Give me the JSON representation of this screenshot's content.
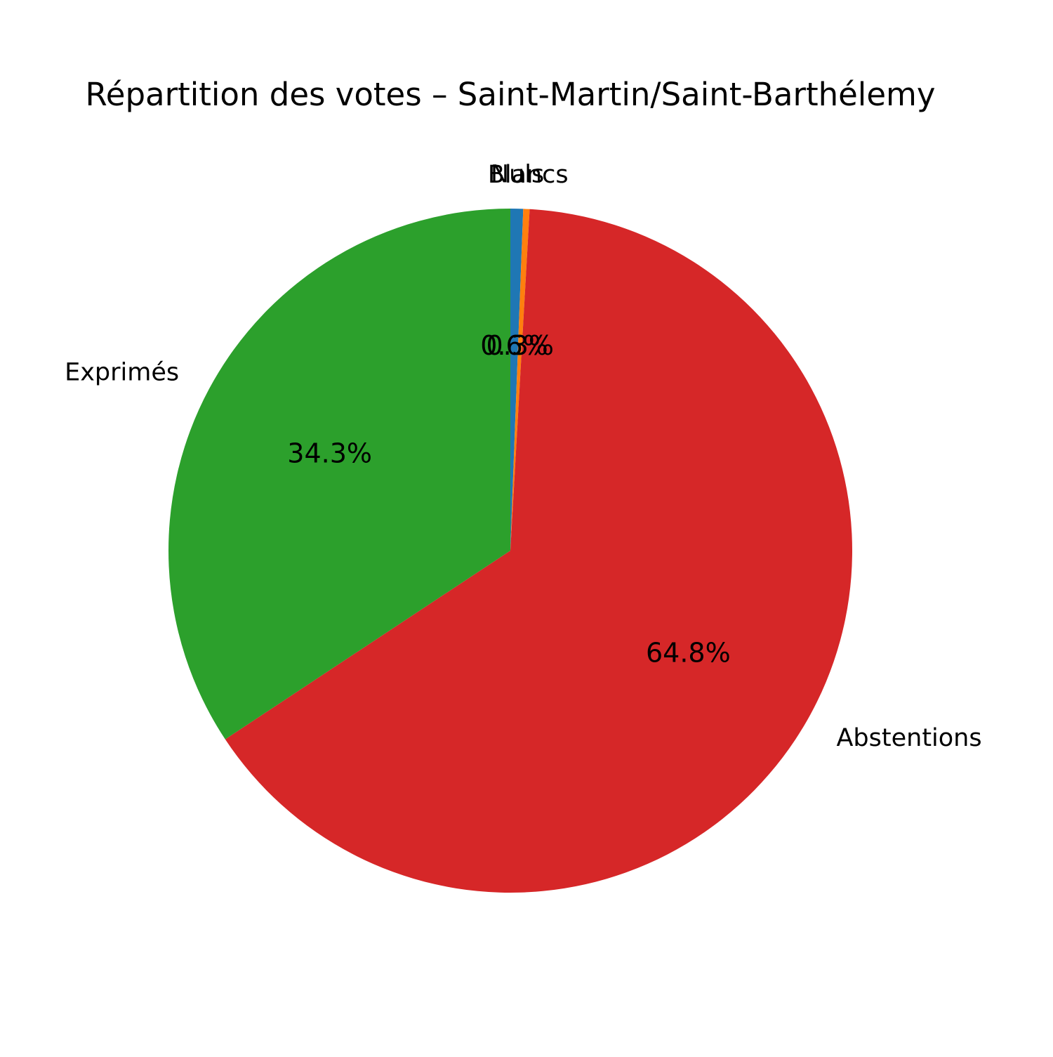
{
  "chart_data": {
    "type": "pie",
    "title": "Répartition des votes – Saint-Martin/Saint-Barthélemy",
    "start_angle_deg": 90,
    "direction": "clockwise",
    "slices": [
      {
        "label": "Nuls",
        "value": 0.6,
        "pct_label": "0.6%",
        "color": "#1f77b4"
      },
      {
        "label": "Blancs",
        "value": 0.3,
        "pct_label": "0.3%",
        "color": "#ff7f0e"
      },
      {
        "label": "Abstentions",
        "value": 64.8,
        "pct_label": "64.8%",
        "color": "#d62728"
      },
      {
        "label": "Exprimés",
        "value": 34.3,
        "pct_label": "34.3%",
        "color": "#2ca02c"
      }
    ]
  }
}
